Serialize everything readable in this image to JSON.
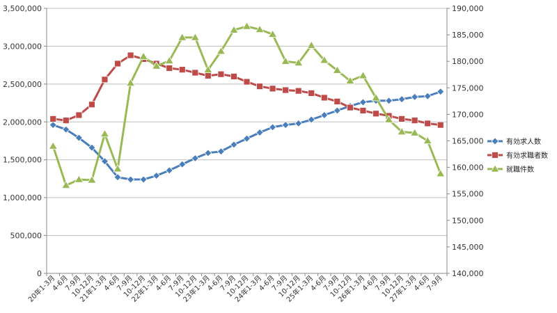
{
  "chart_data": {
    "type": "line",
    "title": "",
    "xlabel": "",
    "ylabel": "",
    "y_left_lim": [
      0,
      3500000
    ],
    "y_right_lim": [
      140000,
      190000
    ],
    "y_left_ticks": [
      0,
      500000,
      1000000,
      1500000,
      2000000,
      2500000,
      3000000,
      3500000
    ],
    "y_right_ticks": [
      140000,
      145000,
      150000,
      155000,
      160000,
      165000,
      170000,
      175000,
      180000,
      185000,
      190000
    ],
    "y_left_tick_labels": [
      "0",
      "500,000",
      "1,000,000",
      "1,500,000",
      "2,000,000",
      "2,500,000",
      "3,000,000",
      "3,500,000"
    ],
    "y_right_tick_labels": [
      "140,000",
      "145,000",
      "150,000",
      "155,000",
      "160,000",
      "165,000",
      "170,000",
      "175,000",
      "180,000",
      "185,000",
      "190,000"
    ],
    "categories": [
      "20年1-3月",
      "4-6月",
      "7-9月",
      "10-12月",
      "21年1-3月",
      "4-6月",
      "7-9月",
      "10-12月",
      "22年1-3月",
      "4-6月",
      "7-9月",
      "10-12月",
      "23年1-3月",
      "4-6月",
      "7-9月",
      "10-12月",
      "24年1-3月",
      "4-6月",
      "7-9月",
      "10-12月",
      "25年1-3月",
      "4-6月",
      "7-9月",
      "10-12月",
      "26年1-3月",
      "4-6月",
      "7-9月",
      "10-12月",
      "27年1-3月",
      "4-6月",
      "7-9月"
    ],
    "legend_position": "right",
    "grid": true,
    "series": [
      {
        "name": "有効求人数",
        "axis": "left",
        "color": "#4a7ebb",
        "marker": "diamond",
        "values": [
          1960000,
          1900000,
          1790000,
          1660000,
          1480000,
          1270000,
          1240000,
          1240000,
          1290000,
          1360000,
          1440000,
          1520000,
          1590000,
          1610000,
          1700000,
          1780000,
          1860000,
          1930000,
          1960000,
          1980000,
          2030000,
          2090000,
          2150000,
          2210000,
          2260000,
          2280000,
          2280000,
          2300000,
          2330000,
          2340000,
          2400000
        ]
      },
      {
        "name": "有効求職者数",
        "axis": "left",
        "color": "#be4b48",
        "marker": "square",
        "values": [
          2040000,
          2020000,
          2090000,
          2230000,
          2560000,
          2770000,
          2880000,
          2830000,
          2770000,
          2710000,
          2690000,
          2650000,
          2610000,
          2630000,
          2600000,
          2530000,
          2470000,
          2440000,
          2420000,
          2410000,
          2380000,
          2320000,
          2270000,
          2190000,
          2150000,
          2110000,
          2080000,
          2040000,
          2020000,
          1980000,
          1960000
        ]
      },
      {
        "name": "就職件数",
        "axis": "right",
        "color": "#98b954",
        "marker": "triangle",
        "values": [
          164000,
          156600,
          157700,
          157600,
          166300,
          159700,
          175900,
          180900,
          179100,
          180100,
          184500,
          184500,
          178400,
          181900,
          185900,
          186600,
          186000,
          185100,
          180000,
          179700,
          183000,
          180200,
          178300,
          176300,
          177300,
          173100,
          169000,
          166700,
          166500,
          165000,
          158800
        ]
      }
    ]
  }
}
